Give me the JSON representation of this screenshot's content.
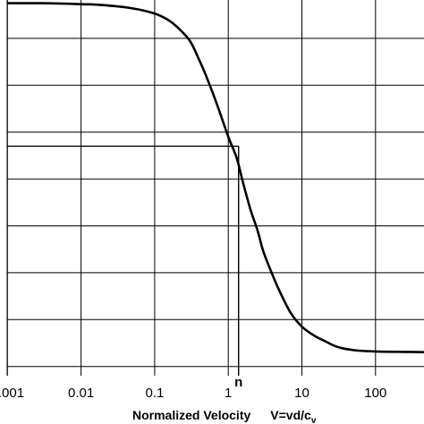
{
  "chart_data": {
    "type": "line",
    "title": "",
    "xscale": "log",
    "xlim": [
      0.001,
      1000
    ],
    "ylim": [
      0,
      9
    ],
    "x_ticks": [
      0.001,
      0.01,
      0.1,
      1,
      10,
      100
    ],
    "x_tick_labels": [
      "0.001",
      "0.01",
      "0.1",
      "1",
      "10",
      "100"
    ],
    "y_ticks": [
      0,
      1,
      2,
      3,
      4,
      5,
      6,
      7,
      8,
      9
    ],
    "y_tick_labels": [],
    "grid": true,
    "xlabel_main": "Normalized Velocity",
    "xlabel_formula": "V=vd/c",
    "xlabel_subscript": "v",
    "marker": {
      "label": "n",
      "x": 1.38,
      "y": 5.7
    },
    "series": [
      {
        "x": [
          0.001,
          0.003,
          0.01,
          0.02,
          0.05,
          0.1,
          0.15,
          0.2,
          0.3,
          0.4,
          0.5,
          0.7,
          1,
          1.3,
          1.6,
          2,
          2.5,
          3,
          4,
          5,
          7,
          10,
          15,
          20,
          30,
          50,
          100,
          300,
          1000
        ],
        "y": [
          8.75,
          8.75,
          8.73,
          8.71,
          8.64,
          8.53,
          8.4,
          8.25,
          7.95,
          7.55,
          7.2,
          6.6,
          5.9,
          5.45,
          4.9,
          4.35,
          3.9,
          3.45,
          2.95,
          2.6,
          2.15,
          1.85,
          1.65,
          1.55,
          1.42,
          1.35,
          1.32,
          1.31,
          1.3
        ]
      }
    ]
  }
}
